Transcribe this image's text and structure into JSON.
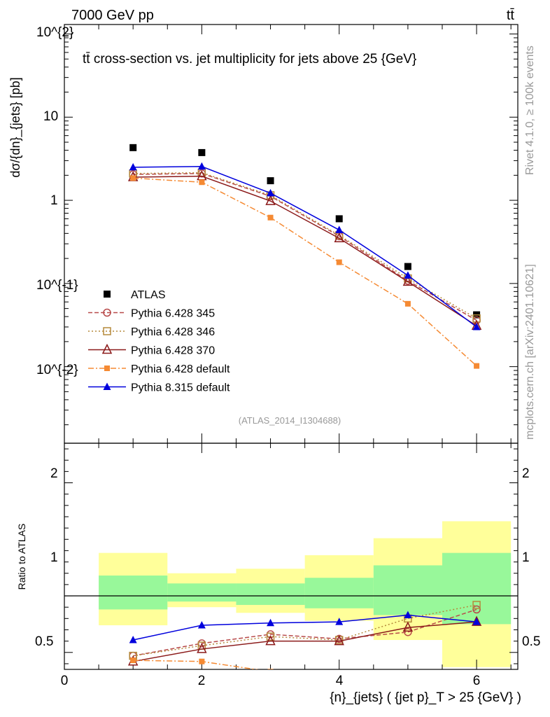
{
  "header": {
    "energy": "7000 GeV pp",
    "process": "tt̄",
    "title": "tt̄ cross-section vs. jet multiplicity for jets above 25 {GeV}",
    "ref": "(ATLAS_2014_I1304688)",
    "side_rivet": "Rivet 4.1.0, ≥ 100k events",
    "side_site": "mcplots.cern.ch [arXiv:2401.10621]"
  },
  "chart_data": {
    "type": "line",
    "top": {
      "ylabel": "dσ/{dn}_{jets} [pb]",
      "ylim": [
        0.0012,
        130
      ],
      "yscale": "log",
      "y_ticks": [
        "10^{-2}",
        "10^{-1}",
        "1",
        "10",
        "10^{2}"
      ],
      "x": [
        1,
        2,
        3,
        4,
        5,
        6
      ],
      "series": [
        {
          "name": "ATLAS",
          "values": [
            4.3,
            3.75,
            1.72,
            0.6,
            0.16,
            0.042
          ]
        },
        {
          "name": "Pythia 6.428 345",
          "values": [
            2.05,
            2.1,
            1.12,
            0.37,
            0.108,
            0.036
          ]
        },
        {
          "name": "Pythia 6.428 346",
          "values": [
            2.1,
            2.15,
            1.15,
            0.38,
            0.115,
            0.038
          ]
        },
        {
          "name": "Pythia 6.428 370",
          "values": [
            1.9,
            1.95,
            0.98,
            0.35,
            0.105,
            0.031
          ]
        },
        {
          "name": "Pythia 6.428 default",
          "values": [
            1.85,
            1.65,
            0.62,
            0.18,
            0.057,
            0.0102
          ]
        },
        {
          "name": "Pythia 8.315 default",
          "values": [
            2.5,
            2.55,
            1.22,
            0.44,
            0.125,
            0.03
          ]
        }
      ]
    },
    "ratio": {
      "ylabel": "Ratio to ATLAS",
      "ylim": [
        0.35,
        2.35
      ],
      "y_ticks": [
        "0.5",
        "1",
        "2"
      ],
      "band_inner": [
        [
          0.88,
          1.18
        ],
        [
          0.95,
          1.11
        ],
        [
          0.92,
          1.11
        ],
        [
          0.89,
          1.16
        ],
        [
          0.83,
          1.27
        ],
        [
          0.75,
          1.38
        ]
      ],
      "band_outer": [
        [
          0.74,
          1.38
        ],
        [
          0.9,
          1.2
        ],
        [
          0.85,
          1.24
        ],
        [
          0.78,
          1.36
        ],
        [
          0.61,
          1.51
        ],
        [
          0.37,
          1.66
        ]
      ],
      "series": [
        {
          "name": "Pythia 6.428 345",
          "values": [
            0.47,
            0.58,
            0.66,
            0.62,
            0.68,
            0.88
          ]
        },
        {
          "name": "Pythia 6.428 346",
          "values": [
            0.47,
            0.56,
            0.64,
            0.61,
            0.8,
            0.92
          ]
        },
        {
          "name": "Pythia 6.428 370",
          "values": [
            0.42,
            0.53,
            0.6,
            0.6,
            0.72,
            0.77
          ]
        },
        {
          "name": "Pythia 6.428 default",
          "values": [
            0.43,
            0.42,
            0.33,
            0.3,
            0.3,
            0.25
          ]
        },
        {
          "name": "Pythia 8.315 default",
          "values": [
            0.61,
            0.74,
            0.76,
            0.77,
            0.83,
            0.77
          ]
        }
      ]
    },
    "xlabel": "{n}_{jets} ( {jet p}_T > 25 {GeV} )",
    "x_ticks": [
      "0",
      "2",
      "4",
      "6"
    ],
    "xlim": [
      0,
      6.6
    ],
    "legend_position": "lower-left",
    "colors": {
      "atlas": "#000000",
      "p345": "#b84a4a",
      "p346": "#b58a3c",
      "p370": "#8b1a1a",
      "p6def": "#f58a33",
      "p8def": "#0000dd",
      "band_inner": "#98f89a",
      "band_outer": "#ffff9a"
    }
  }
}
